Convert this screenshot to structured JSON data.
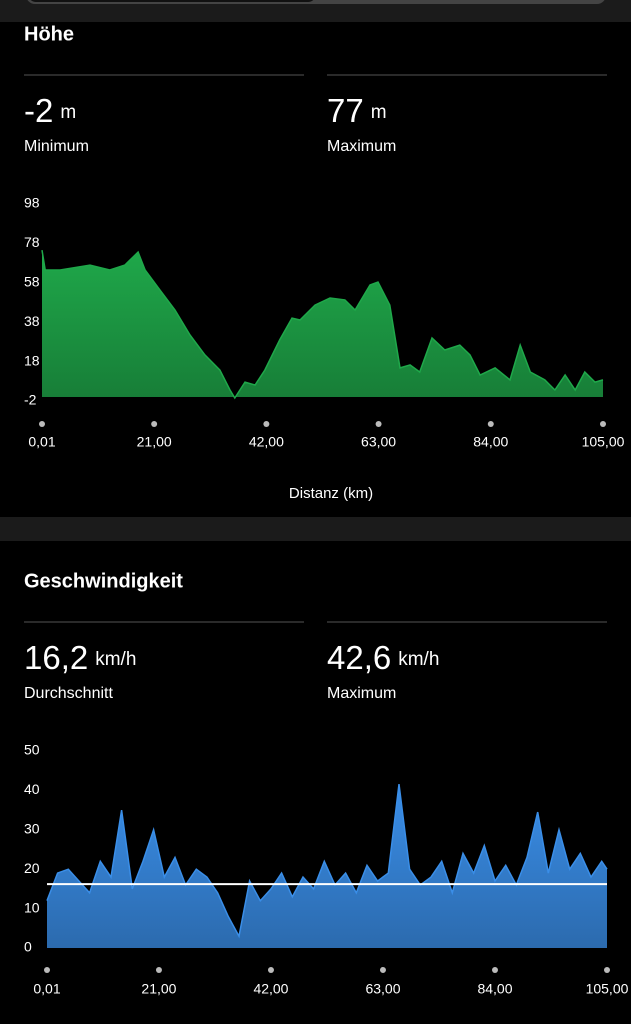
{
  "chart_data": [
    {
      "type": "area",
      "title": "Höhe",
      "stats": [
        {
          "value": -2,
          "unit": "m",
          "label": "Minimum"
        },
        {
          "value": 77,
          "unit": "m",
          "label": "Maximum"
        }
      ],
      "x": [
        0.01,
        0.6,
        3.4,
        9.0,
        12.7,
        15.5,
        18.0,
        19.3,
        22.1,
        24.9,
        27.7,
        30.5,
        33.3,
        35.2,
        36.1,
        38.0,
        39.9,
        41.7,
        44.5,
        46.8,
        48.3,
        51.1,
        53.9,
        56.7,
        58.6,
        61.4,
        62.9,
        65.1,
        67.0,
        68.9,
        70.7,
        73.0,
        75.4,
        78.2,
        80.1,
        82.0,
        84.8,
        87.6,
        89.5,
        91.4,
        94.1,
        96.0,
        97.9,
        99.8,
        101.6,
        103.5,
        105
      ],
      "values": [
        74.6,
        64.5,
        64.5,
        67.0,
        64.5,
        67.0,
        73.6,
        64.5,
        54.3,
        44.2,
        31.5,
        21.4,
        13.7,
        3.6,
        -0.5,
        7.6,
        6.1,
        13.7,
        29.0,
        40.1,
        39.1,
        46.7,
        50.3,
        49.3,
        44.2,
        56.9,
        58.4,
        46.7,
        14.8,
        16.3,
        12.7,
        30.0,
        23.9,
        26.4,
        21.4,
        11.2,
        14.8,
        8.7,
        26.4,
        12.7,
        8.7,
        3.6,
        11.2,
        3.6,
        12.7,
        7.6,
        8.7
      ],
      "color": "#1fa84a",
      "xlim": [
        0.01,
        105
      ],
      "xticks": [
        {
          "value": 0.01,
          "label": "0,01"
        },
        {
          "value": 21,
          "label": "21,00"
        },
        {
          "value": 42,
          "label": "42,00"
        },
        {
          "value": 63,
          "label": "63,00"
        },
        {
          "value": 84,
          "label": "84,00"
        },
        {
          "value": 105,
          "label": "105,00"
        }
      ],
      "ylim": [
        -2,
        98
      ],
      "yticks": [
        98,
        78,
        58,
        38,
        18,
        -2
      ],
      "xlabel": "Distanz (km)"
    },
    {
      "type": "area",
      "title": "Geschwindigkeit",
      "stats": [
        {
          "value": {
            "value": 16.2,
            "label": "16,2"
          },
          "unit": "km/h",
          "label": "Durchschnitt"
        },
        {
          "value": {
            "value": 42.6,
            "label": "42,6"
          },
          "unit": "km/h",
          "label": "Maximum"
        }
      ],
      "x": [
        0.01,
        2,
        4,
        6,
        8,
        10,
        12,
        14,
        16,
        18,
        20,
        22,
        24,
        26,
        28,
        30,
        32,
        34,
        36,
        38,
        40,
        42,
        44,
        46,
        48,
        50,
        52,
        54,
        56,
        58,
        60,
        62,
        64,
        66,
        68,
        70,
        72,
        74,
        76,
        78,
        80,
        82,
        84,
        86,
        88,
        90,
        92,
        94,
        96,
        98,
        100,
        102,
        104,
        105
      ],
      "values": [
        12,
        19,
        20,
        17,
        14,
        22,
        18,
        35,
        15,
        22,
        30,
        18,
        23,
        16,
        20,
        18,
        14,
        8,
        3,
        17,
        12,
        15,
        19,
        13,
        18,
        15,
        22,
        16,
        19,
        14,
        21,
        17,
        19,
        41.6,
        20,
        16,
        18,
        22,
        14,
        24,
        19,
        26,
        17,
        21,
        16,
        23,
        34.5,
        19,
        30,
        20,
        24,
        18,
        22,
        20
      ],
      "color": "#3a8ee8",
      "xlim": [
        0.01,
        105
      ],
      "xticks": [
        {
          "value": 0.01,
          "label": "0,01"
        },
        {
          "value": 21,
          "label": "21,00"
        },
        {
          "value": 42,
          "label": "42,00"
        },
        {
          "value": 63,
          "label": "63,00"
        },
        {
          "value": 84,
          "label": "84,00"
        },
        {
          "value": 105,
          "label": "105,00"
        }
      ],
      "ylim": [
        0,
        50
      ],
      "yticks": [
        0,
        10,
        20,
        30,
        40,
        50
      ],
      "average_line": true
    }
  ]
}
